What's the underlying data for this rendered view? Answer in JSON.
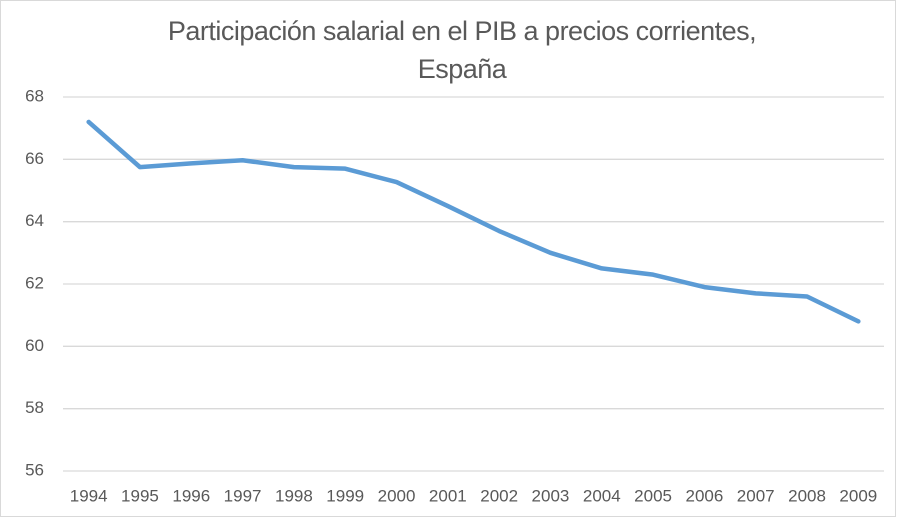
{
  "chart_data": {
    "type": "line",
    "title": [
      "Participación salarial en el PIB a precios corrientes,",
      "España"
    ],
    "categories": [
      "1994",
      "1995",
      "1996",
      "1997",
      "1998",
      "1999",
      "2000",
      "2001",
      "2002",
      "2003",
      "2004",
      "2005",
      "2006",
      "2007",
      "2008",
      "2009"
    ],
    "series": [
      {
        "name": "Participación salarial",
        "color": "#5b9bd5",
        "values": [
          67.2,
          65.75,
          65.87,
          65.97,
          65.75,
          65.7,
          65.27,
          64.5,
          63.7,
          63.0,
          62.5,
          62.3,
          61.9,
          61.7,
          61.6,
          60.8
        ]
      }
    ],
    "ylim": [
      56,
      68
    ],
    "yticks": [
      56,
      58,
      60,
      62,
      64,
      66,
      68
    ],
    "grid": true
  }
}
